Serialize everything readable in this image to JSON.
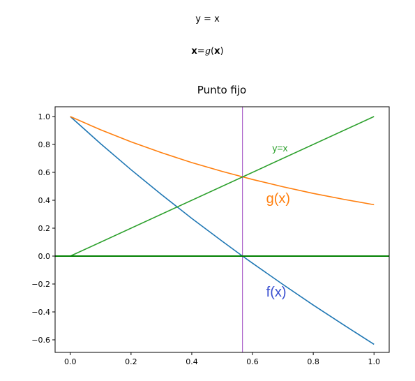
{
  "equations": {
    "line1": "y = x",
    "line2_bold_x": "x",
    "line2_eq": "=",
    "line2_g": "g",
    "line2_open": "(",
    "line2_bold_x2": "x",
    "line2_close": ")"
  },
  "chart_data": {
    "type": "line",
    "title": "Punto fijo",
    "xlabel": "",
    "ylabel": "",
    "xlim": [
      -0.05,
      1.05
    ],
    "ylim": [
      -0.69,
      1.07
    ],
    "xticks": [
      0.0,
      0.2,
      0.4,
      0.6,
      0.8,
      1.0
    ],
    "xtick_labels": [
      "0.0",
      "0.2",
      "0.4",
      "0.6",
      "0.8",
      "1.0"
    ],
    "yticks": [
      1.0,
      0.8,
      0.6,
      0.4,
      0.2,
      0.0,
      -0.2,
      -0.4,
      -0.6
    ],
    "ytick_labels": [
      "1.0",
      "0.8",
      "0.6",
      "0.4",
      "0.2",
      "0.0",
      "−0.2",
      "−0.4",
      "−0.6"
    ],
    "grid": false,
    "series": [
      {
        "color": "#1f77b4",
        "x": [
          0.0,
          0.1,
          0.2,
          0.3,
          0.4,
          0.5,
          0.567,
          0.6,
          0.7,
          0.8,
          0.9,
          1.0
        ],
        "y": [
          1.0,
          0.805,
          0.619,
          0.441,
          0.27,
          0.107,
          0.0,
          -0.051,
          -0.203,
          -0.351,
          -0.493,
          -0.632
        ]
      },
      {
        "color": "#ff7f0e",
        "x": [
          0.0,
          0.1,
          0.2,
          0.3,
          0.4,
          0.5,
          0.6,
          0.7,
          0.8,
          0.9,
          1.0
        ],
        "y": [
          1.0,
          0.905,
          0.819,
          0.741,
          0.67,
          0.607,
          0.549,
          0.497,
          0.449,
          0.407,
          0.368
        ]
      },
      {
        "color": "#2ca02c",
        "x": [
          0.0,
          1.0
        ],
        "y": [
          0.0,
          1.0
        ]
      }
    ],
    "hline": {
      "y": 0.0,
      "color": "#008000"
    },
    "vline": {
      "x": 0.567,
      "color": "#9a44c0"
    },
    "annotations": [
      {
        "text": "y=x",
        "x": 0.665,
        "y": 0.75,
        "color": "#2ca02c",
        "size": "small"
      },
      {
        "text": "g(x)",
        "x": 0.645,
        "y": 0.38,
        "color": "#ff7f0e",
        "size": "large"
      },
      {
        "text": "f(x)",
        "x": 0.645,
        "y": -0.29,
        "color": "#3a4fd0",
        "size": "large"
      }
    ]
  }
}
